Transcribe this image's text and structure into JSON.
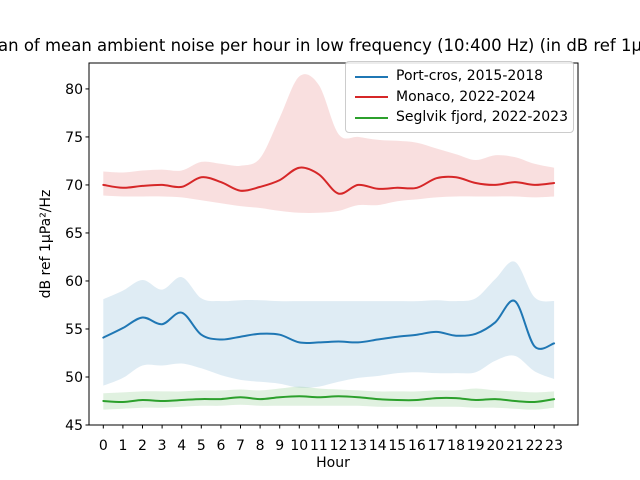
{
  "chart_data": {
    "type": "line",
    "title": "an of mean ambient noise per hour in low frequency (10:400 Hz) (in dB ref 1µ",
    "xlabel": "Hour",
    "ylabel": "dB ref 1µPa²/Hz",
    "xlim": [
      -0.73,
      24.22
    ],
    "ylim": [
      45,
      82.7
    ],
    "xticks": [
      0,
      1,
      2,
      3,
      4,
      5,
      6,
      7,
      8,
      9,
      10,
      11,
      12,
      13,
      14,
      15,
      16,
      17,
      18,
      19,
      20,
      21,
      22,
      23
    ],
    "yticks": [
      45,
      50,
      55,
      60,
      65,
      70,
      75,
      80
    ],
    "grid": false,
    "legend_position": "upper right",
    "x": [
      0,
      1,
      2,
      3,
      4,
      5,
      6,
      7,
      8,
      9,
      10,
      11,
      12,
      13,
      14,
      15,
      16,
      17,
      18,
      19,
      20,
      21,
      22,
      23
    ],
    "series": [
      {
        "name": "Port-cros, 2015-2018",
        "color": "#1f77b4",
        "band_alpha": 0.14,
        "values": [
          54.1,
          55.1,
          56.2,
          55.5,
          56.7,
          54.4,
          53.9,
          54.2,
          54.5,
          54.4,
          53.6,
          53.6,
          53.7,
          53.6,
          53.9,
          54.2,
          54.4,
          54.7,
          54.3,
          54.5,
          55.7,
          57.9,
          53.2,
          53.5
        ],
        "band_upper": [
          58.1,
          59.0,
          60.1,
          59.1,
          60.4,
          58.2,
          57.9,
          58.0,
          58.0,
          57.9,
          57.9,
          57.9,
          57.9,
          57.9,
          57.9,
          57.9,
          57.9,
          58.0,
          57.9,
          58.2,
          60.2,
          62.0,
          58.3,
          57.9
        ],
        "band_lower": [
          49.1,
          49.9,
          51.2,
          51.2,
          51.4,
          50.9,
          50.2,
          49.7,
          49.5,
          49.3,
          48.9,
          49.0,
          49.5,
          49.9,
          50.1,
          50.4,
          50.5,
          50.4,
          50.4,
          50.5,
          51.7,
          52.2,
          50.6,
          49.8
        ]
      },
      {
        "name": "Monaco, 2022-2024",
        "color": "#d62728",
        "band_alpha": 0.15,
        "values": [
          70.0,
          69.7,
          69.9,
          70.0,
          69.8,
          70.8,
          70.3,
          69.4,
          69.8,
          70.5,
          71.8,
          71.1,
          69.1,
          70.0,
          69.6,
          69.7,
          69.7,
          70.7,
          70.8,
          70.2,
          70.0,
          70.3,
          70.0,
          70.2
        ],
        "band_upper": [
          71.4,
          71.3,
          71.5,
          71.6,
          71.5,
          72.4,
          72.2,
          72.0,
          72.8,
          77.0,
          81.3,
          80.4,
          75.3,
          75.0,
          74.7,
          74.6,
          74.4,
          73.8,
          73.2,
          72.6,
          73.1,
          72.9,
          72.2,
          71.8
        ],
        "band_lower": [
          68.9,
          68.8,
          68.8,
          68.8,
          68.7,
          68.4,
          68.1,
          67.8,
          67.6,
          67.3,
          67.1,
          67.1,
          67.3,
          67.9,
          67.9,
          68.3,
          68.5,
          68.7,
          68.8,
          68.8,
          68.8,
          68.8,
          68.7,
          68.8
        ]
      },
      {
        "name": "Seglvik fjord, 2022-2023",
        "color": "#2ca02c",
        "band_alpha": 0.15,
        "values": [
          47.5,
          47.4,
          47.6,
          47.5,
          47.6,
          47.7,
          47.7,
          47.9,
          47.7,
          47.9,
          48.0,
          47.9,
          48.0,
          47.9,
          47.7,
          47.6,
          47.6,
          47.8,
          47.8,
          47.6,
          47.7,
          47.5,
          47.4,
          47.7
        ],
        "band_upper": [
          48.3,
          48.4,
          48.5,
          48.5,
          48.5,
          48.6,
          48.6,
          48.7,
          48.6,
          48.8,
          49.0,
          48.8,
          48.7,
          48.6,
          48.5,
          48.5,
          48.5,
          48.6,
          48.6,
          48.8,
          48.6,
          48.5,
          48.4,
          48.5
        ],
        "band_lower": [
          46.6,
          46.7,
          46.8,
          46.8,
          46.9,
          47.0,
          47.0,
          47.1,
          47.0,
          47.0,
          47.0,
          47.0,
          47.0,
          47.0,
          46.9,
          46.9,
          46.9,
          46.9,
          46.9,
          46.8,
          46.8,
          46.7,
          46.6,
          46.8
        ]
      }
    ]
  }
}
